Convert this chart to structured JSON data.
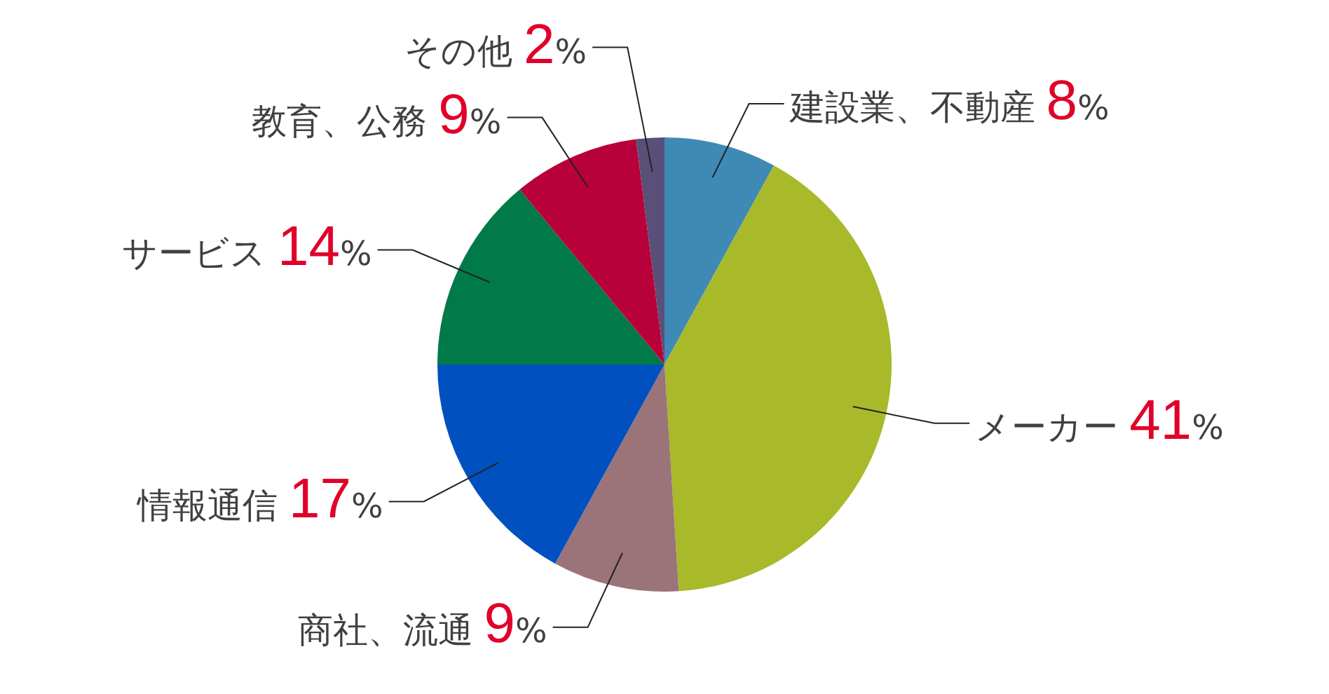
{
  "chart_data": {
    "type": "pie",
    "categories": [
      "建設業、不動産",
      "メーカー",
      "商社、流通",
      "情報通信",
      "サービス",
      "教育、公務",
      "その他"
    ],
    "values": [
      8,
      41,
      9,
      17,
      14,
      9,
      2
    ],
    "colors": [
      "#3f8ab5",
      "#a8b92a",
      "#9a7479",
      "#0050c0",
      "#007a48",
      "#b8003a",
      "#5a4f78"
    ],
    "value_labels": [
      "8%",
      "41%",
      "9%",
      "17%",
      "14%",
      "9%",
      "2%"
    ]
  }
}
